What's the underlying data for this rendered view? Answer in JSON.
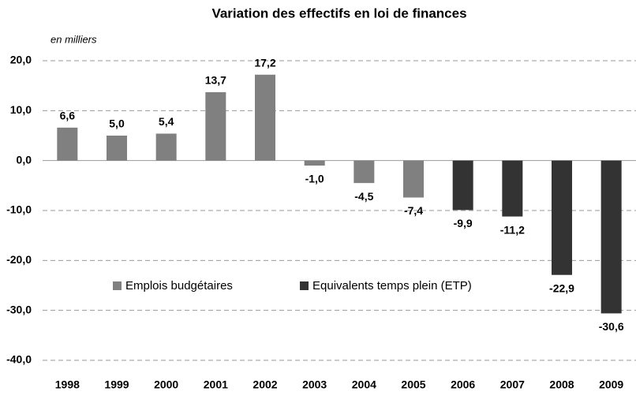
{
  "chart_data": {
    "type": "bar",
    "title": "Variation des effectifs en loi de finances",
    "y_label": "en milliers",
    "categories": [
      "1998",
      "1999",
      "2000",
      "2001",
      "2002",
      "2003",
      "2004",
      "2005",
      "2006",
      "2007",
      "2008",
      "2009"
    ],
    "series": [
      {
        "name": "Emplois budgétaires",
        "color": "#808080",
        "values": [
          6.6,
          5.0,
          5.4,
          13.7,
          17.2,
          -1.0,
          -4.5,
          -7.4,
          null,
          null,
          null,
          null
        ],
        "value_labels": [
          "6,6",
          "5,0",
          "5,4",
          "13,7",
          "17,2",
          "-1,0",
          "-4,5",
          "-7,4",
          null,
          null,
          null,
          null
        ]
      },
      {
        "name": "Equivalents temps plein (ETP)",
        "color": "#333333",
        "values": [
          null,
          null,
          null,
          null,
          null,
          null,
          null,
          null,
          -9.9,
          -11.2,
          -22.9,
          -30.6
        ],
        "value_labels": [
          null,
          null,
          null,
          null,
          null,
          null,
          null,
          null,
          "-9,9",
          "-11,2",
          "-22,9",
          "-30,6"
        ]
      }
    ],
    "ylim": [
      -40,
      20
    ],
    "yticks": [
      {
        "value": 20,
        "label": "20,0"
      },
      {
        "value": 10,
        "label": "10,0"
      },
      {
        "value": 0,
        "label": "0,0"
      },
      {
        "value": -10,
        "label": "-10,0"
      },
      {
        "value": -20,
        "label": "-20,0"
      },
      {
        "value": -30,
        "label": "-30,0"
      },
      {
        "value": -40,
        "label": "-40,0"
      }
    ],
    "grid": true
  }
}
